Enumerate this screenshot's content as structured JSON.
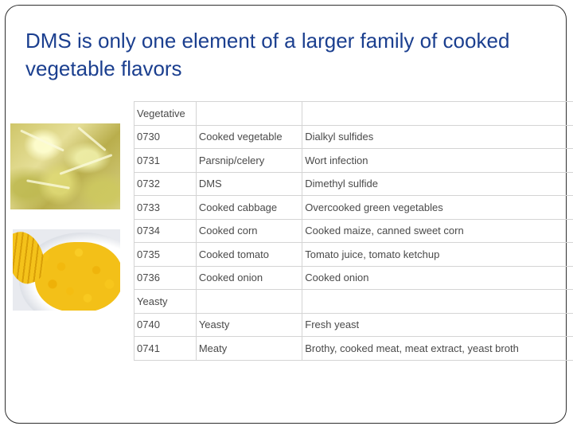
{
  "slide": {
    "title": "DMS is only one element of a larger family of cooked vegetable flavors"
  },
  "images": {
    "cabbage": "cooked-cabbage-photo",
    "corn": "cooked-corn-photo"
  },
  "table": {
    "rows": [
      {
        "type": "section",
        "cells": [
          "Vegetative",
          "",
          ""
        ]
      },
      {
        "type": "row",
        "cells": [
          "0730",
          "Cooked vegetable",
          "Dialkyl sulfides"
        ]
      },
      {
        "type": "row",
        "cells": [
          "0731",
          "Parsnip/celery",
          "Wort infection"
        ]
      },
      {
        "type": "row",
        "cells": [
          "0732",
          "DMS",
          "Dimethyl sulfide"
        ]
      },
      {
        "type": "row",
        "cells": [
          "0733",
          "Cooked cabbage",
          "Overcooked green vegetables"
        ]
      },
      {
        "type": "row",
        "cells": [
          "0734",
          "Cooked corn",
          "Cooked maize, canned sweet corn"
        ]
      },
      {
        "type": "row",
        "cells": [
          "0735",
          "Cooked tomato",
          "Tomato juice, tomato ketchup"
        ]
      },
      {
        "type": "row",
        "cells": [
          "0736",
          "Cooked onion",
          "Cooked onion"
        ]
      },
      {
        "type": "section",
        "cells": [
          "Yeasty",
          "",
          ""
        ]
      },
      {
        "type": "row",
        "cells": [
          "0740",
          "Yeasty",
          "Fresh yeast"
        ]
      },
      {
        "type": "row",
        "cells": [
          "0741",
          "Meaty",
          "Brothy, cooked meat, meat extract, yeast broth"
        ]
      }
    ]
  },
  "colors": {
    "title": "#1b3f8f",
    "table_text": "#4a4a4a",
    "table_border": "#d4d4d4"
  }
}
